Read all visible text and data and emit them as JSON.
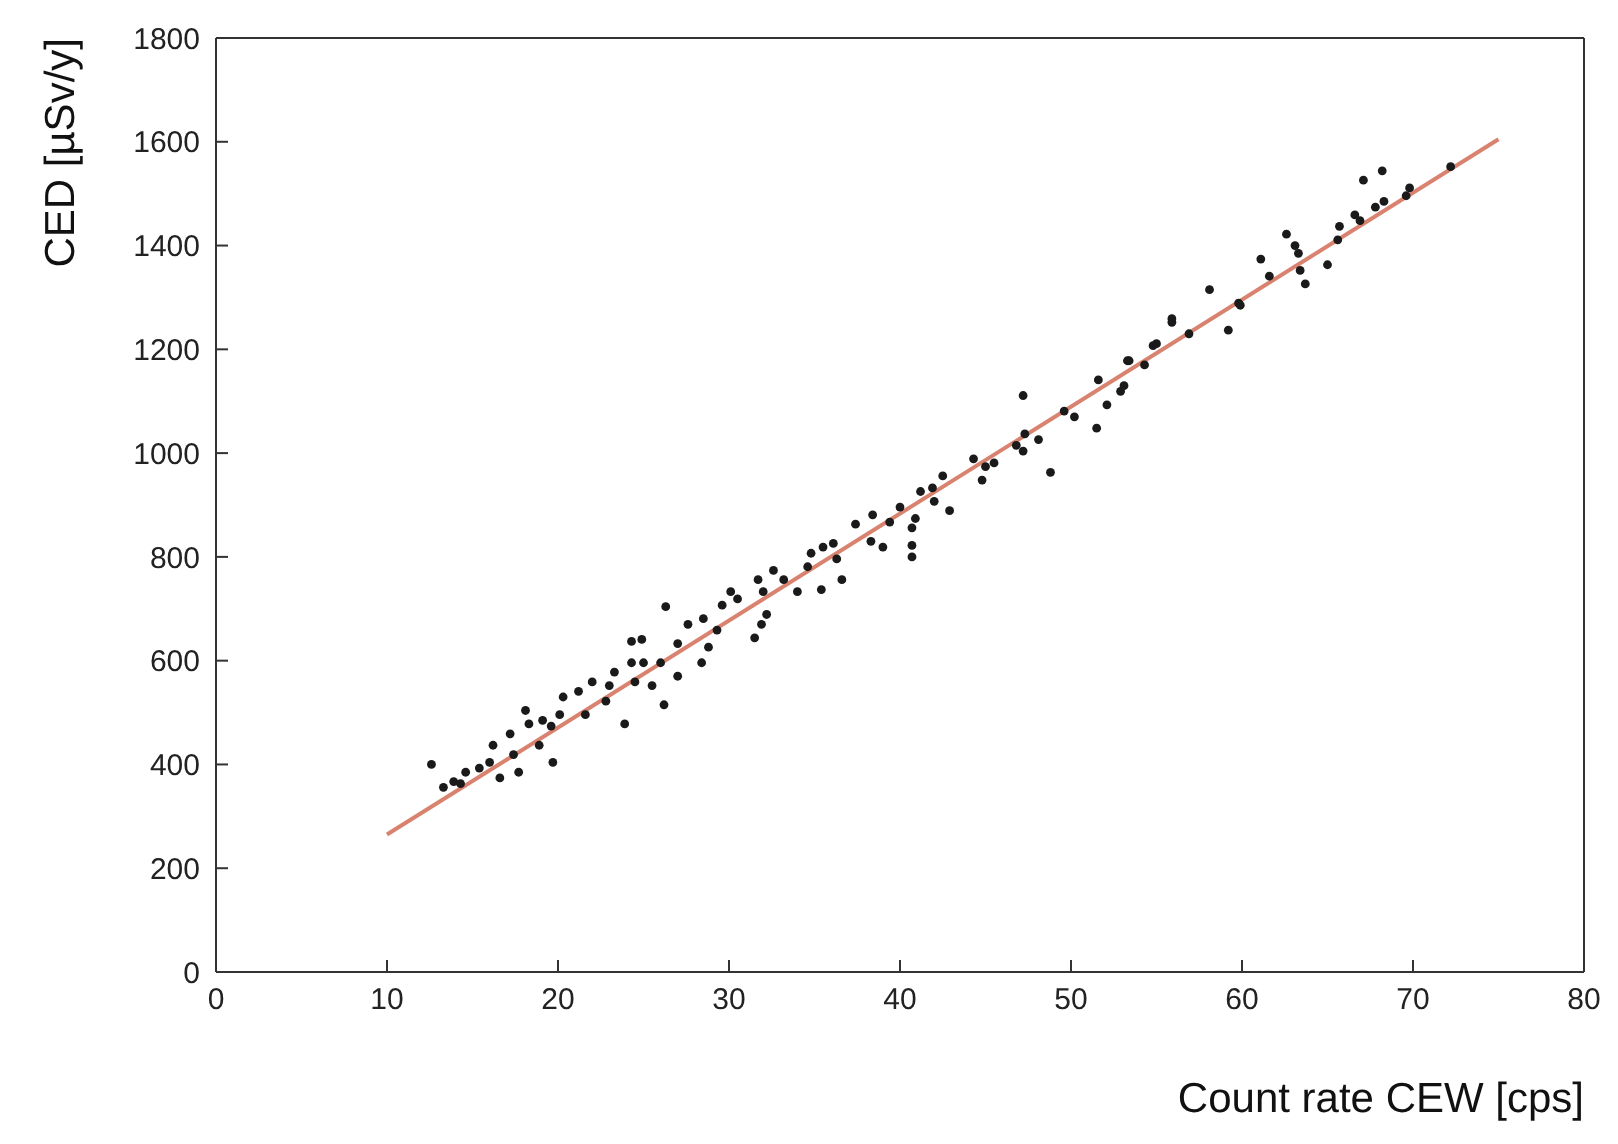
{
  "chart_data": {
    "type": "scatter",
    "xlabel": "Count rate CEW [cps]",
    "ylabel": "CED [µSv/y]",
    "xlim": [
      0,
      80
    ],
    "xticks": [
      0,
      10,
      20,
      30,
      40,
      50,
      60,
      70,
      80
    ],
    "ylim": [
      0,
      1800
    ],
    "yticks": [
      0,
      200,
      400,
      600,
      800,
      1000,
      1200,
      1400,
      1600,
      1800
    ],
    "marker": "circle",
    "series": [
      {
        "color": "#1a1a1a",
        "x": [
          72.2,
          68.2,
          67.1,
          69.8,
          69.6,
          68.3,
          67.8,
          66.6,
          66.9,
          65.7,
          65.6,
          62.6,
          63.1,
          63.3,
          61.1,
          61.6,
          63.4,
          63.7,
          65.0,
          58.1,
          59.8,
          59.9,
          55.9,
          55.9,
          59.2,
          55.0,
          56.9,
          53.3,
          54.3,
          54.8,
          53.4,
          51.6,
          53.1,
          52.9,
          47.2,
          52.1,
          49.6,
          50.2,
          51.5,
          47.3,
          48.1,
          46.8,
          47.2,
          48.8,
          44.3,
          45.0,
          45.5,
          44.8,
          42.5,
          41.9,
          41.2,
          42.0,
          42.9,
          40.0,
          40.9,
          38.4,
          37.4,
          39.4,
          40.7,
          40.7,
          40.7,
          39.0,
          38.3,
          36.1,
          36.3,
          35.5,
          34.8,
          36.6,
          34.6,
          33.2,
          32.6,
          35.4,
          34.0,
          32.0,
          31.7,
          31.9,
          31.5,
          32.2,
          30.1,
          29.6,
          26.3,
          28.5,
          27.6,
          29.3,
          28.4,
          27.0,
          26.0,
          24.3,
          24.9,
          25.0,
          23.3,
          24.3,
          24.5,
          26.2,
          23.9,
          22.0,
          21.2,
          22.8,
          20.3,
          20.1,
          19.1,
          18.3,
          18.1,
          17.2,
          19.6,
          19.7,
          17.7,
          17.4,
          16.2,
          16.0,
          15.4,
          14.6,
          13.9,
          13.3,
          12.6,
          14.3,
          16.6,
          18.9,
          21.6,
          23.0,
          25.5,
          27.0,
          28.8,
          30.5
        ],
        "values": [
          1552,
          1544,
          1526,
          1511,
          1496,
          1485,
          1474,
          1459,
          1448,
          1437,
          1411,
          1422,
          1400,
          1385,
          1374,
          1341,
          1352,
          1326,
          1363,
          1315,
          1289,
          1285,
          1259,
          1252,
          1237,
          1211,
          1230,
          1178,
          1170,
          1207,
          1178,
          1141,
          1130,
          1119,
          1111,
          1093,
          1081,
          1070,
          1048,
          1037,
          1026,
          1015,
          1004,
          963,
          989,
          974,
          981,
          948,
          956,
          933,
          926,
          907,
          889,
          896,
          874,
          881,
          863,
          867,
          856,
          822,
          800,
          819,
          830,
          826,
          796,
          819,
          807,
          756,
          781,
          756,
          774,
          737,
          733,
          733,
          756,
          670,
          644,
          689,
          733,
          707,
          704,
          681,
          670,
          659,
          596,
          633,
          596,
          637,
          641,
          596,
          578,
          596,
          559,
          515,
          478,
          559,
          541,
          522,
          530,
          496,
          485,
          478,
          504,
          459,
          474,
          404,
          385,
          419,
          437,
          404,
          393,
          385,
          367,
          356,
          400,
          363,
          374,
          437,
          496,
          552,
          552,
          570,
          626,
          719
        ]
      },
      {
        "type": "line",
        "color": "#d9826f",
        "marker": "none",
        "x": [
          10,
          75
        ],
        "values": [
          265,
          1605
        ]
      }
    ]
  }
}
